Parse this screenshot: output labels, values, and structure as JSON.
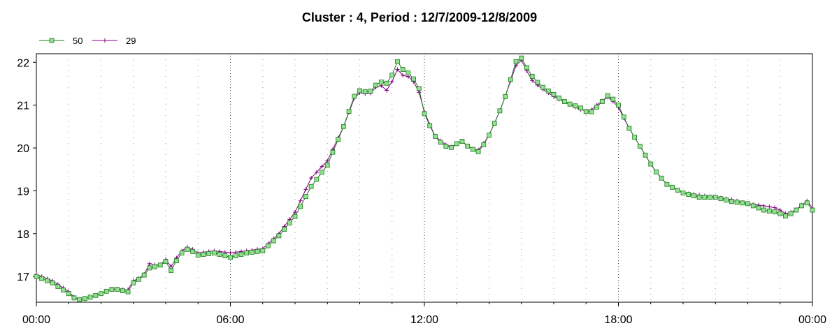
{
  "chart_data": {
    "type": "line",
    "title": "Cluster : 4, Period : 12/7/2009-12/8/2009",
    "xlabel": "",
    "ylabel": "",
    "x_ticks": [
      "00:00",
      "06:00",
      "12:00",
      "18:00",
      "00:00"
    ],
    "x_tick_hours": [
      0,
      6,
      12,
      18,
      24
    ],
    "xlim": [
      0,
      24
    ],
    "ylim": [
      16.4,
      22.2
    ],
    "y_ticks": [
      17,
      18,
      19,
      20,
      21,
      22
    ],
    "grid": "dotted",
    "legend_position": "top-left",
    "series": [
      {
        "name": "50",
        "color": "#1f7a1f",
        "marker_fill": "#90e090",
        "marker": "square",
        "points": [
          [
            0,
            17.0
          ],
          [
            0.5,
            16.85
          ],
          [
            1.0,
            16.6
          ],
          [
            1.25,
            16.45
          ],
          [
            1.6,
            16.5
          ],
          [
            2.0,
            16.6
          ],
          [
            2.3,
            16.7
          ],
          [
            2.6,
            16.7
          ],
          [
            2.8,
            16.6
          ],
          [
            3.0,
            16.85
          ],
          [
            3.3,
            17.0
          ],
          [
            3.5,
            17.2
          ],
          [
            3.8,
            17.25
          ],
          [
            4.0,
            17.35
          ],
          [
            4.2,
            17.1
          ],
          [
            4.4,
            17.5
          ],
          [
            4.7,
            17.65
          ],
          [
            5.0,
            17.5
          ],
          [
            5.5,
            17.55
          ],
          [
            6.0,
            17.45
          ],
          [
            6.5,
            17.55
          ],
          [
            7.0,
            17.6
          ],
          [
            7.5,
            17.95
          ],
          [
            8.0,
            18.4
          ],
          [
            8.5,
            19.1
          ],
          [
            9.0,
            19.6
          ],
          [
            9.5,
            20.5
          ],
          [
            9.9,
            21.35
          ],
          [
            10.3,
            21.3
          ],
          [
            10.6,
            21.55
          ],
          [
            10.9,
            21.5
          ],
          [
            11.0,
            21.7
          ],
          [
            11.1,
            22.1
          ],
          [
            11.3,
            21.85
          ],
          [
            11.6,
            21.7
          ],
          [
            11.9,
            21.3
          ],
          [
            12.0,
            20.8
          ],
          [
            12.3,
            20.3
          ],
          [
            12.6,
            20.05
          ],
          [
            12.9,
            20.0
          ],
          [
            13.1,
            20.2
          ],
          [
            13.4,
            20.0
          ],
          [
            13.7,
            19.9
          ],
          [
            14.0,
            20.3
          ],
          [
            14.3,
            20.8
          ],
          [
            14.6,
            21.4
          ],
          [
            14.8,
            22.0
          ],
          [
            15.0,
            22.1
          ],
          [
            15.3,
            21.7
          ],
          [
            15.6,
            21.45
          ],
          [
            16.0,
            21.25
          ],
          [
            16.4,
            21.05
          ],
          [
            16.8,
            20.95
          ],
          [
            17.1,
            20.8
          ],
          [
            17.4,
            21.0
          ],
          [
            17.7,
            21.25
          ],
          [
            18.0,
            21.0
          ],
          [
            18.3,
            20.5
          ],
          [
            18.7,
            20.0
          ],
          [
            19.1,
            19.5
          ],
          [
            19.5,
            19.15
          ],
          [
            20.0,
            18.95
          ],
          [
            20.5,
            18.85
          ],
          [
            21.0,
            18.85
          ],
          [
            21.5,
            18.75
          ],
          [
            22.0,
            18.7
          ],
          [
            22.5,
            18.55
          ],
          [
            22.9,
            18.5
          ],
          [
            23.2,
            18.4
          ],
          [
            23.6,
            18.6
          ],
          [
            23.8,
            18.75
          ],
          [
            24.0,
            18.55
          ]
        ]
      },
      {
        "name": "29",
        "color": "#800080",
        "marker": "plus",
        "points": [
          [
            0,
            17.05
          ],
          [
            0.5,
            16.9
          ],
          [
            1.0,
            16.65
          ],
          [
            1.25,
            16.45
          ],
          [
            1.6,
            16.5
          ],
          [
            2.0,
            16.6
          ],
          [
            2.3,
            16.7
          ],
          [
            2.6,
            16.72
          ],
          [
            2.8,
            16.65
          ],
          [
            3.0,
            16.9
          ],
          [
            3.3,
            17.0
          ],
          [
            3.5,
            17.3
          ],
          [
            3.8,
            17.25
          ],
          [
            4.0,
            17.4
          ],
          [
            4.2,
            17.2
          ],
          [
            4.4,
            17.55
          ],
          [
            4.7,
            17.7
          ],
          [
            5.0,
            17.55
          ],
          [
            5.5,
            17.6
          ],
          [
            6.0,
            17.55
          ],
          [
            6.5,
            17.6
          ],
          [
            7.0,
            17.65
          ],
          [
            7.5,
            18.0
          ],
          [
            8.0,
            18.5
          ],
          [
            8.5,
            19.3
          ],
          [
            9.0,
            19.7
          ],
          [
            9.5,
            20.5
          ],
          [
            9.9,
            21.3
          ],
          [
            10.3,
            21.25
          ],
          [
            10.6,
            21.5
          ],
          [
            10.9,
            21.3
          ],
          [
            11.0,
            21.55
          ],
          [
            11.1,
            21.9
          ],
          [
            11.3,
            21.7
          ],
          [
            11.6,
            21.65
          ],
          [
            11.9,
            21.2
          ],
          [
            12.0,
            20.85
          ],
          [
            12.3,
            20.3
          ],
          [
            12.6,
            20.1
          ],
          [
            12.9,
            20.0
          ],
          [
            13.1,
            20.2
          ],
          [
            13.4,
            20.0
          ],
          [
            13.7,
            19.95
          ],
          [
            14.0,
            20.3
          ],
          [
            14.3,
            20.8
          ],
          [
            14.6,
            21.4
          ],
          [
            14.8,
            21.9
          ],
          [
            15.0,
            22.05
          ],
          [
            15.3,
            21.6
          ],
          [
            15.6,
            21.4
          ],
          [
            16.0,
            21.2
          ],
          [
            16.4,
            21.05
          ],
          [
            16.8,
            20.9
          ],
          [
            17.1,
            20.85
          ],
          [
            17.4,
            21.05
          ],
          [
            17.7,
            21.2
          ],
          [
            18.0,
            20.95
          ],
          [
            18.3,
            20.5
          ],
          [
            18.7,
            20.0
          ],
          [
            19.1,
            19.5
          ],
          [
            19.5,
            19.15
          ],
          [
            20.0,
            18.95
          ],
          [
            20.5,
            18.9
          ],
          [
            21.0,
            18.85
          ],
          [
            21.5,
            18.8
          ],
          [
            22.0,
            18.7
          ],
          [
            22.5,
            18.65
          ],
          [
            22.9,
            18.6
          ],
          [
            23.2,
            18.45
          ],
          [
            23.6,
            18.6
          ],
          [
            23.8,
            18.8
          ],
          [
            24.0,
            18.6
          ]
        ]
      }
    ]
  }
}
